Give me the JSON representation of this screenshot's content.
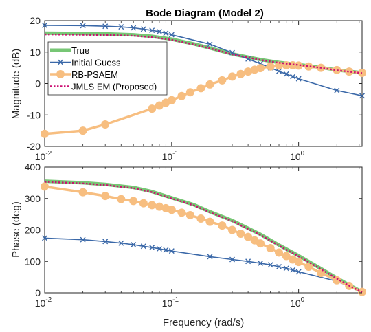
{
  "chart_data": [
    {
      "type": "line",
      "title": "Bode Diagram (Model 2)",
      "xlabel": "",
      "ylabel": "Magnitude (dB)",
      "xscale": "log",
      "xlim": [
        0.01,
        3.16
      ],
      "ylim": [
        -20,
        20
      ],
      "grid": false,
      "yticks": [
        "-20",
        "-10",
        "0",
        "10",
        "20"
      ],
      "xticks": [
        {
          "base": "10",
          "exp": "-2"
        },
        {
          "base": "10",
          "exp": "-1"
        },
        {
          "base": "10",
          "exp": "0"
        }
      ],
      "legend": {
        "placement": "top-left",
        "entries": [
          "True",
          "Initial Guess",
          "RB-PSAEM",
          "JMLS EM (Proposed)"
        ]
      },
      "series": [
        {
          "name": "True",
          "x": [
            0.01,
            0.02,
            0.03,
            0.05,
            0.07,
            0.1,
            0.15,
            0.2,
            0.3,
            0.5,
            0.7,
            1.0,
            1.5,
            2.0,
            3.16
          ],
          "values": [
            16.0,
            15.9,
            15.8,
            15.5,
            15.0,
            14.1,
            12.6,
            11.3,
            9.4,
            7.6,
            6.7,
            6.0,
            5.1,
            4.3,
            3.4
          ]
        },
        {
          "name": "Initial Guess",
          "x": [
            0.01,
            0.02,
            0.03,
            0.04,
            0.05,
            0.06,
            0.07,
            0.08,
            0.09,
            0.1,
            0.2,
            0.3,
            0.4,
            0.5,
            0.6,
            0.7,
            0.8,
            0.9,
            1.0,
            2.0,
            3.16
          ],
          "values": [
            18.5,
            18.4,
            18.2,
            18.0,
            17.7,
            17.3,
            16.9,
            16.5,
            16.0,
            15.5,
            12.5,
            9.8,
            7.8,
            6.3,
            5.0,
            3.9,
            3.0,
            2.2,
            1.5,
            -2.2,
            -3.9
          ]
        },
        {
          "name": "RB-PSAEM",
          "x": [
            0.01,
            0.02,
            0.03,
            0.07,
            0.08,
            0.09,
            0.1,
            0.12,
            0.14,
            0.17,
            0.2,
            0.25,
            0.3,
            0.35,
            0.4,
            0.45,
            0.5,
            0.6,
            0.7,
            0.8,
            0.9,
            1.0,
            1.2,
            1.5,
            2.0,
            2.5,
            3.16
          ],
          "values": [
            -16.0,
            -15.0,
            -13.0,
            -8.0,
            -7.0,
            -6.1,
            -5.3,
            -4.0,
            -2.8,
            -1.5,
            -0.3,
            1.0,
            2.2,
            3.0,
            3.8,
            4.4,
            4.9,
            5.4,
            5.7,
            5.8,
            5.8,
            5.7,
            5.4,
            5.0,
            4.3,
            3.8,
            3.4
          ]
        },
        {
          "name": "JMLS EM (Proposed)",
          "x": [
            0.01,
            0.02,
            0.03,
            0.05,
            0.07,
            0.1,
            0.15,
            0.2,
            0.3,
            0.5,
            0.7,
            1.0,
            1.5,
            2.0,
            3.16
          ],
          "values": [
            15.6,
            15.5,
            15.4,
            15.2,
            14.7,
            13.9,
            12.4,
            11.2,
            9.3,
            7.5,
            6.6,
            5.9,
            5.0,
            4.2,
            3.3
          ]
        }
      ]
    },
    {
      "type": "line",
      "title": "",
      "xlabel": "Frequency (rad/s)",
      "ylabel": "Phase (deg)",
      "xscale": "log",
      "xlim": [
        0.01,
        3.16
      ],
      "ylim": [
        0,
        400
      ],
      "grid": false,
      "yticks": [
        "0",
        "100",
        "200",
        "300",
        "400"
      ],
      "xticks": [
        {
          "base": "10",
          "exp": "-2"
        },
        {
          "base": "10",
          "exp": "-1"
        },
        {
          "base": "10",
          "exp": "0"
        }
      ],
      "series": [
        {
          "name": "True",
          "x": [
            0.01,
            0.02,
            0.03,
            0.05,
            0.07,
            0.1,
            0.15,
            0.2,
            0.3,
            0.5,
            0.7,
            1.0,
            1.5,
            2.0,
            2.5,
            3.16
          ],
          "values": [
            355,
            350,
            345,
            335,
            322,
            302,
            280,
            258,
            230,
            186,
            152,
            118,
            77,
            47,
            25,
            3
          ]
        },
        {
          "name": "Initial Guess",
          "x": [
            0.01,
            0.02,
            0.03,
            0.04,
            0.05,
            0.06,
            0.07,
            0.08,
            0.09,
            0.1,
            0.2,
            0.3,
            0.4,
            0.5,
            0.6,
            0.7,
            0.8,
            0.9,
            1.0,
            2.0,
            3.16
          ],
          "values": [
            174,
            169,
            163,
            158,
            153,
            148,
            144,
            140,
            136,
            133,
            115,
            106,
            100,
            94,
            89,
            83,
            78,
            73,
            67,
            37,
            3
          ]
        },
        {
          "name": "RB-PSAEM",
          "x": [
            0.01,
            0.02,
            0.03,
            0.04,
            0.05,
            0.06,
            0.07,
            0.08,
            0.09,
            0.1,
            0.12,
            0.14,
            0.17,
            0.2,
            0.25,
            0.3,
            0.35,
            0.4,
            0.45,
            0.5,
            0.6,
            0.7,
            0.8,
            0.9,
            1.0,
            1.2,
            1.5,
            2.0,
            2.5,
            3.16
          ],
          "values": [
            338,
            320,
            308,
            298,
            292,
            285,
            279,
            274,
            269,
            264,
            255,
            247,
            236,
            226,
            214,
            200,
            188,
            178,
            167,
            157,
            142,
            128,
            117,
            106,
            98,
            83,
            63,
            40,
            22,
            3
          ]
        },
        {
          "name": "JMLS EM (Proposed)",
          "x": [
            0.01,
            0.02,
            0.03,
            0.05,
            0.07,
            0.1,
            0.15,
            0.2,
            0.3,
            0.5,
            0.7,
            1.0,
            1.5,
            2.0,
            2.5,
            3.16
          ],
          "values": [
            353,
            348,
            343,
            333,
            320,
            300,
            278,
            256,
            228,
            184,
            150,
            116,
            75,
            45,
            23,
            2
          ]
        }
      ]
    }
  ],
  "style": {
    "colors": {
      "True": "#77c675",
      "Initial Guess": "#3a68a8",
      "RB-PSAEM": "#f7be80",
      "JMLS EM (Proposed)": "#cc0f72"
    }
  }
}
